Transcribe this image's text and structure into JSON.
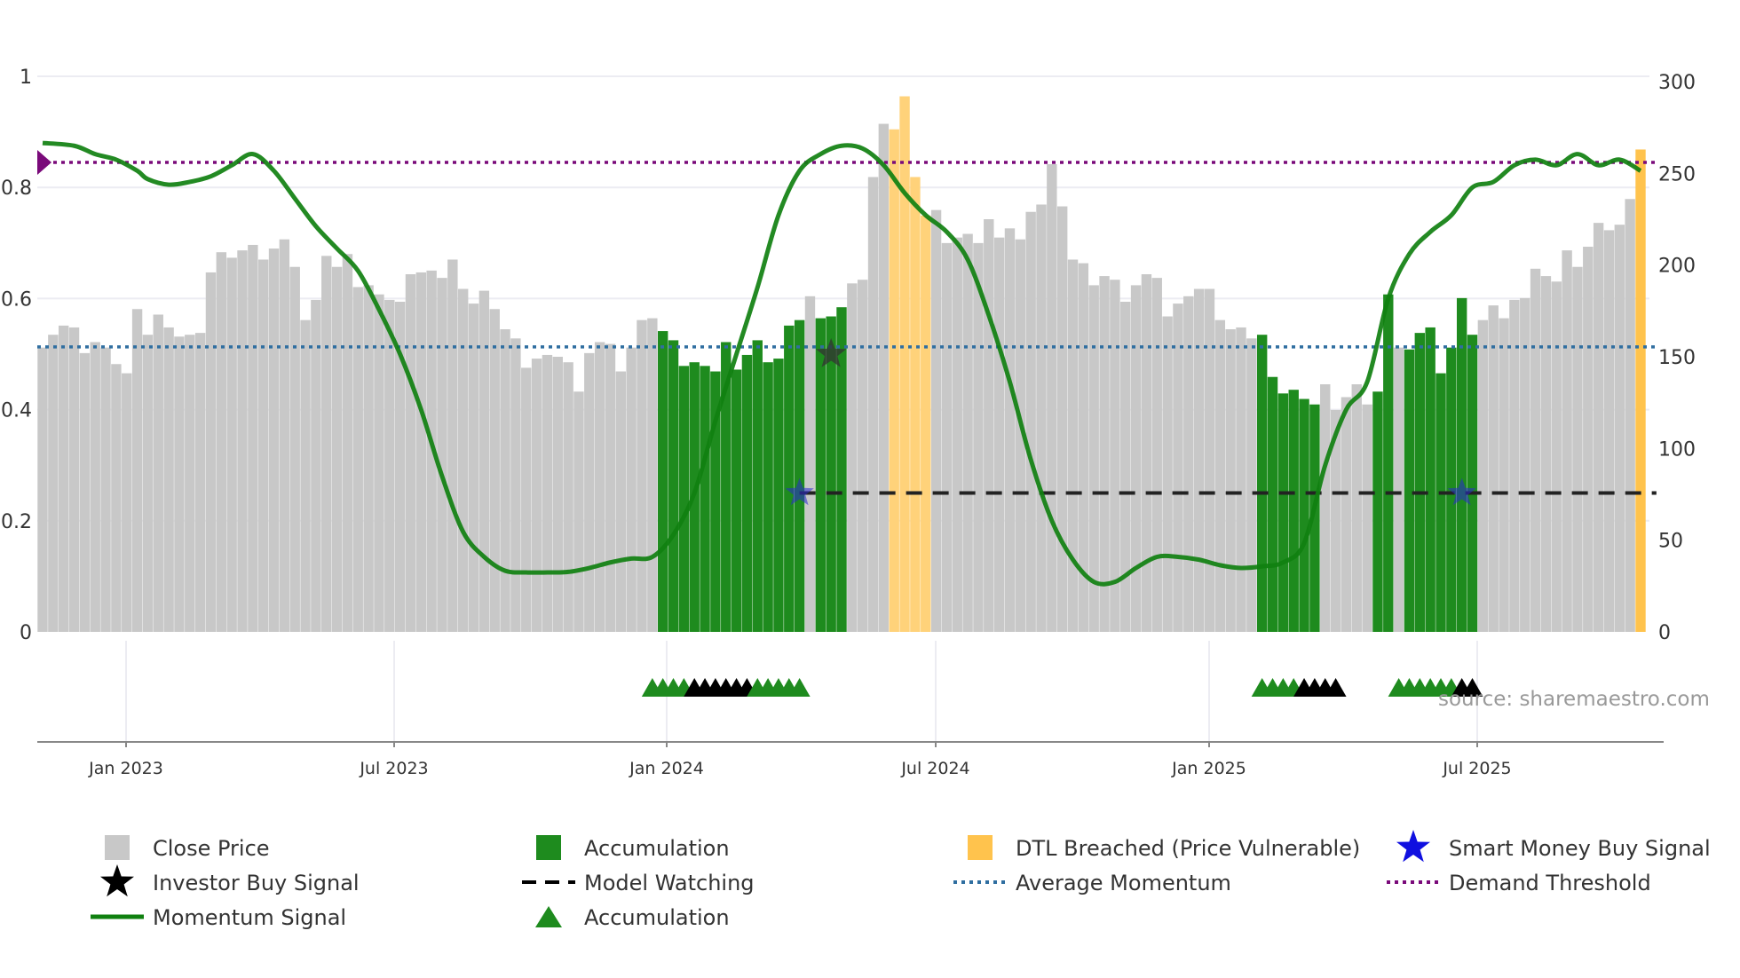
{
  "chart_data": {
    "type": "bar",
    "title": "",
    "source": "source: sharemaestro.com",
    "x_ticks": [
      "Jan 2023",
      "Jul 2023",
      "Jan 2024",
      "Jul 2024",
      "Jan 2025",
      "Jul 2025"
    ],
    "y_left": {
      "range": [
        0,
        1
      ],
      "ticks": [
        "0",
        "0.2",
        "0.4",
        "0.6",
        "0.8",
        "1"
      ]
    },
    "y_right": {
      "range": [
        0,
        300
      ],
      "ticks": [
        "0",
        "50",
        "100",
        "150",
        "200",
        "250",
        "300"
      ]
    },
    "bars_close_price": [
      155,
      162,
      167,
      166,
      152,
      158,
      155,
      146,
      141,
      176,
      162,
      173,
      166,
      161,
      162,
      163,
      196,
      207,
      204,
      208,
      211,
      203,
      209,
      214,
      199,
      170,
      181,
      205,
      199,
      206,
      188,
      189,
      184,
      181,
      180,
      195,
      196,
      197,
      193,
      203,
      187,
      179,
      186,
      176,
      165,
      160,
      144,
      149,
      151,
      150,
      147,
      131,
      152,
      158,
      157,
      142,
      155,
      170,
      171,
      164,
      159,
      145,
      147,
      145,
      142,
      158,
      143,
      151,
      159,
      147,
      149,
      167,
      170,
      183,
      171,
      172,
      177,
      190,
      192,
      248,
      277,
      274,
      292,
      248,
      227,
      230,
      212,
      215,
      217,
      212,
      225,
      215,
      220,
      214,
      229,
      233,
      255,
      232,
      203,
      201,
      189,
      194,
      192,
      180,
      189,
      195,
      193,
      172,
      179,
      183,
      187,
      187,
      170,
      165,
      166,
      160,
      162,
      139,
      130,
      132,
      127,
      124,
      135,
      121,
      128,
      135,
      124,
      131,
      184,
      155,
      154,
      163,
      166,
      141,
      155,
      182,
      162,
      170,
      178,
      171,
      181,
      182,
      198,
      194,
      191,
      208,
      199,
      210,
      223,
      219,
      222,
      236,
      263
    ],
    "bar_categories": {
      "accumulation_ranges": [
        [
          59,
          72
        ],
        [
          74,
          76
        ],
        [
          116,
          121
        ],
        [
          127,
          128
        ],
        [
          130,
          136
        ]
      ],
      "dtl_breached_ranges": [
        [
          81,
          84
        ],
        [
          152,
          152
        ]
      ]
    },
    "momentum_signal": {
      "x_weeks": [
        0,
        3,
        5,
        7,
        9,
        10,
        12,
        14,
        16,
        18,
        20,
        22,
        24,
        26,
        28,
        30,
        32,
        34,
        36,
        38,
        40,
        42,
        44,
        46,
        48,
        50,
        52,
        54,
        56,
        58,
        60,
        62,
        64,
        66,
        68,
        70,
        72,
        74,
        76,
        78,
        80,
        82,
        84,
        86,
        88,
        90,
        92,
        94,
        96,
        98,
        100,
        102,
        104,
        106,
        108,
        110,
        112,
        114,
        116,
        118,
        120,
        122,
        124,
        126,
        128,
        130,
        132,
        134,
        136,
        138,
        140,
        142,
        144,
        146,
        148,
        150,
        152
      ],
      "values": [
        0.88,
        0.875,
        0.86,
        0.85,
        0.83,
        0.815,
        0.805,
        0.81,
        0.82,
        0.84,
        0.86,
        0.83,
        0.78,
        0.73,
        0.69,
        0.65,
        0.58,
        0.5,
        0.4,
        0.28,
        0.18,
        0.135,
        0.11,
        0.107,
        0.107,
        0.108,
        0.115,
        0.125,
        0.132,
        0.135,
        0.175,
        0.25,
        0.38,
        0.5,
        0.62,
        0.75,
        0.83,
        0.86,
        0.875,
        0.87,
        0.84,
        0.79,
        0.75,
        0.72,
        0.67,
        0.57,
        0.45,
        0.31,
        0.2,
        0.13,
        0.09,
        0.09,
        0.115,
        0.135,
        0.135,
        0.13,
        0.12,
        0.115,
        0.118,
        0.125,
        0.16,
        0.3,
        0.4,
        0.45,
        0.6,
        0.68,
        0.72,
        0.75,
        0.8,
        0.81,
        0.84,
        0.85,
        0.84,
        0.86,
        0.84,
        0.85,
        0.83
      ]
    },
    "average_momentum": 0.513,
    "demand_threshold": 0.845,
    "model_watching": {
      "value": 0.25,
      "from_week": 72,
      "to_week": 153
    },
    "investor_buy_signals": [
      {
        "week": 75,
        "value": 0.5
      }
    ],
    "smart_money_buy_signals": [
      {
        "week": 72,
        "value": 0.25
      },
      {
        "week": 135,
        "value": 0.25
      }
    ],
    "accumulation_triangles": [
      {
        "from_week": 58,
        "to_week": 61,
        "color": "green"
      },
      {
        "from_week": 62,
        "to_week": 67,
        "color": "black"
      },
      {
        "from_week": 68,
        "to_week": 72,
        "color": "green"
      },
      {
        "from_week": 116,
        "to_week": 119,
        "color": "green"
      },
      {
        "from_week": 120,
        "to_week": 123,
        "color": "black"
      },
      {
        "from_week": 129,
        "to_week": 134,
        "color": "green"
      },
      {
        "from_week": 135,
        "to_week": 136,
        "color": "black"
      }
    ],
    "legend": [
      {
        "label": "Close Price",
        "key": "bar-gray"
      },
      {
        "label": "Accumulation",
        "key": "bar-green"
      },
      {
        "label": "DTL Breached (Price Vulnerable)",
        "key": "bar-orange"
      },
      {
        "label": "Smart Money Buy Signal",
        "key": "star-blue"
      },
      {
        "label": "Investor Buy Signal",
        "key": "star-black"
      },
      {
        "label": "Model Watching",
        "key": "dash-black"
      },
      {
        "label": "Average Momentum",
        "key": "dot-blue"
      },
      {
        "label": "Demand Threshold",
        "key": "dot-purple"
      },
      {
        "label": "Momentum Signal",
        "key": "line-green"
      },
      {
        "label": "Accumulation",
        "key": "triangle-green"
      }
    ],
    "colors": {
      "close_price": "#c8c8c8",
      "accumulation": "#1e8b1e",
      "dtl_breached": "#ffd27a",
      "dtl_breached_last": "#ffc34d",
      "momentum": "#108010",
      "average_momentum": "#2f6ea0",
      "demand_threshold": "#7a0a7a",
      "model_watching": "#222222",
      "smart_money": "#2a2ad0",
      "investor": "#333333",
      "grid": "#ececf2",
      "axis": "#888888"
    }
  }
}
